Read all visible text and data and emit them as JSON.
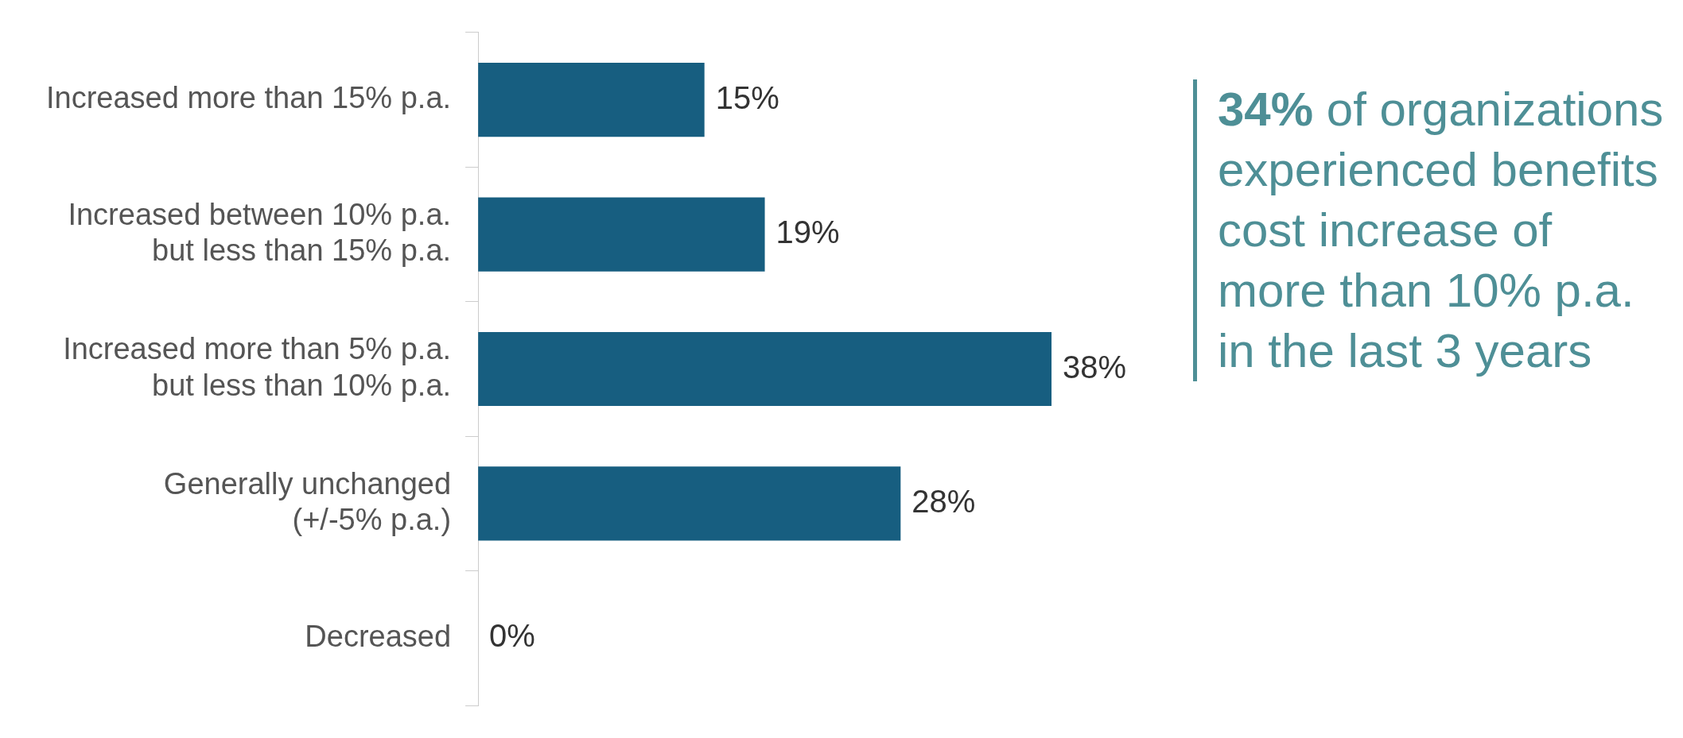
{
  "chart_data": {
    "type": "bar",
    "orientation": "horizontal",
    "categories": [
      "Increased more than 15% p.a.",
      "Increased between 10% p.a.\nbut less than 15% p.a.",
      "Increased more than 5% p.a.\nbut less than 10% p.a.",
      "Generally unchanged\n(+/-5% p.a.)",
      "Decreased"
    ],
    "values": [
      15,
      19,
      38,
      28,
      0
    ],
    "color": "#175e80",
    "data_labels": true,
    "value_labels": [
      "15%",
      "19%",
      "38%",
      "28%",
      "0%"
    ],
    "legend": false,
    "tick_labels": "y",
    "annotations": [
      "34% of organizations experienced benefits cost increase of more than 10% p.a. in the last 3 years"
    ]
  }
}
